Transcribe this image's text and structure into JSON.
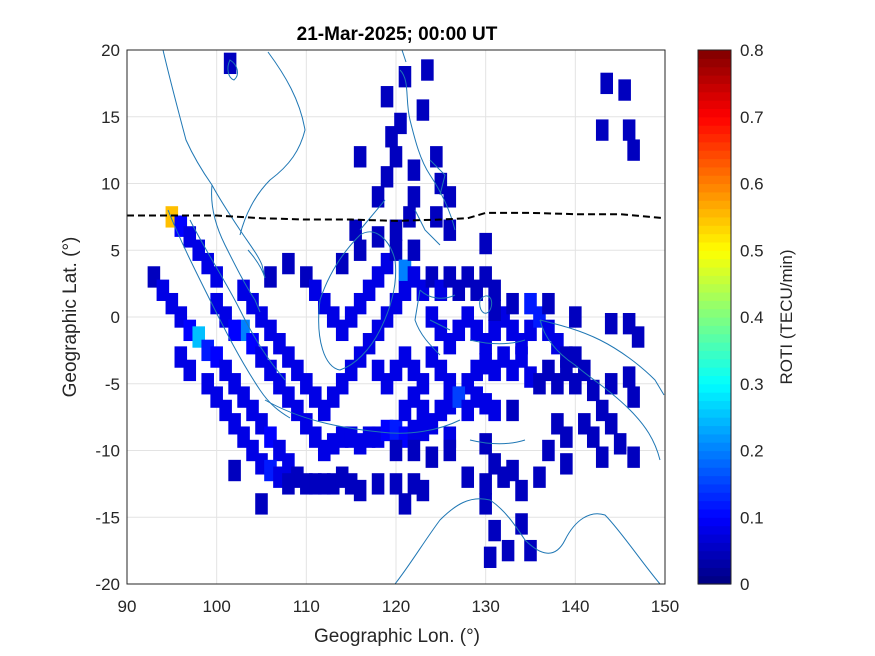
{
  "chart_data": {
    "type": "heatmap",
    "title": "21-Mar-2025; 00:00 UT",
    "xlabel": "Geographic Lon. (°)",
    "ylabel": "Geographic Lat. (°)",
    "xlim": [
      90,
      150
    ],
    "ylim": [
      -20,
      20
    ],
    "xticks": [
      "90",
      "100",
      "110",
      "120",
      "130",
      "140",
      "150"
    ],
    "yticks": [
      "20",
      "15",
      "10",
      "5",
      "0",
      "-5",
      "-10",
      "-15",
      "-20"
    ],
    "grid": true,
    "colorbar": {
      "label": "ROTI (TECU/min)",
      "range": [
        0,
        0.8
      ],
      "ticks": [
        "0.8",
        "0.7",
        "0.6",
        "0.5",
        "0.4",
        "0.3",
        "0.2",
        "0.1",
        "0"
      ],
      "colormap": "jet"
    },
    "overlays": [
      {
        "kind": "coastline",
        "color": "#1f77b4"
      },
      {
        "kind": "magnetic-equator",
        "style": "dashed",
        "color": "#000000",
        "points": [
          [
            90,
            7.6
          ],
          [
            100,
            7.6
          ],
          [
            105,
            7.4
          ],
          [
            110,
            7.3
          ],
          [
            115,
            7.3
          ],
          [
            120,
            7.2
          ],
          [
            125,
            7.3
          ],
          [
            128,
            7.4
          ],
          [
            130,
            7.8
          ],
          [
            135,
            7.8
          ],
          [
            140,
            7.7
          ],
          [
            145,
            7.7
          ],
          [
            150,
            7.4
          ]
        ]
      }
    ],
    "cells": [
      [
        101.5,
        19.0,
        0.05
      ],
      [
        123.5,
        18.5,
        0.05
      ],
      [
        121.0,
        18.0,
        0.05
      ],
      [
        119.0,
        16.5,
        0.05
      ],
      [
        143.5,
        17.5,
        0.05
      ],
      [
        145.5,
        17.0,
        0.05
      ],
      [
        120.5,
        14.5,
        0.05
      ],
      [
        123.0,
        15.5,
        0.05
      ],
      [
        119.5,
        13.5,
        0.05
      ],
      [
        120.0,
        12.0,
        0.05
      ],
      [
        143.0,
        14.0,
        0.05
      ],
      [
        146.0,
        14.0,
        0.05
      ],
      [
        146.5,
        12.5,
        0.05
      ],
      [
        116.0,
        12.0,
        0.05
      ],
      [
        124.5,
        12.0,
        0.05
      ],
      [
        122.0,
        11.0,
        0.05
      ],
      [
        119.0,
        10.5,
        0.05
      ],
      [
        125.0,
        10.0,
        0.05
      ],
      [
        118.0,
        9.0,
        0.05
      ],
      [
        122.0,
        9.0,
        0.05
      ],
      [
        126.0,
        9.0,
        0.05
      ],
      [
        121.5,
        7.5,
        0.05
      ],
      [
        124.5,
        7.5,
        0.05
      ],
      [
        126.0,
        6.5,
        0.05
      ],
      [
        115.5,
        6.5,
        0.05
      ],
      [
        130.0,
        5.5,
        0.05
      ],
      [
        95.0,
        7.5,
        0.55
      ],
      [
        96.0,
        6.8,
        0.1
      ],
      [
        97.0,
        6.0,
        0.08
      ],
      [
        98.0,
        5.0,
        0.08
      ],
      [
        99.0,
        4.0,
        0.08
      ],
      [
        100.0,
        3.0,
        0.08
      ],
      [
        93.0,
        3.0,
        0.05
      ],
      [
        94.0,
        2.0,
        0.08
      ],
      [
        95.0,
        1.0,
        0.08
      ],
      [
        96.0,
        0.0,
        0.08
      ],
      [
        97.0,
        -1.0,
        0.1
      ],
      [
        98.0,
        -1.5,
        0.25
      ],
      [
        99.0,
        -2.5,
        0.12
      ],
      [
        100.0,
        -3.0,
        0.1
      ],
      [
        101.0,
        -4.0,
        0.08
      ],
      [
        102.0,
        -5.0,
        0.08
      ],
      [
        103.0,
        -6.0,
        0.08
      ],
      [
        104.0,
        -7.0,
        0.08
      ],
      [
        105.0,
        -8.0,
        0.08
      ],
      [
        106.0,
        -9.0,
        0.1
      ],
      [
        107.0,
        -10.0,
        0.08
      ],
      [
        108.0,
        -11.0,
        0.08
      ],
      [
        109.0,
        -12.0,
        0.05
      ],
      [
        110.0,
        -12.5,
        0.05
      ],
      [
        111.0,
        -12.5,
        0.05
      ],
      [
        112.0,
        -12.5,
        0.05
      ],
      [
        103.0,
        -1.0,
        0.2
      ],
      [
        104.0,
        -2.0,
        0.1
      ],
      [
        105.0,
        -3.0,
        0.08
      ],
      [
        106.0,
        -4.0,
        0.08
      ],
      [
        107.0,
        -5.0,
        0.08
      ],
      [
        108.0,
        -6.0,
        0.08
      ],
      [
        109.0,
        -7.0,
        0.08
      ],
      [
        110.0,
        -8.0,
        0.08
      ],
      [
        111.0,
        -9.0,
        0.08
      ],
      [
        112.0,
        -10.0,
        0.08
      ],
      [
        113.0,
        -9.5,
        0.08
      ],
      [
        114.0,
        -9.0,
        0.08
      ],
      [
        115.0,
        -9.0,
        0.08
      ],
      [
        116.0,
        -9.5,
        0.08
      ],
      [
        117.0,
        -9.0,
        0.08
      ],
      [
        118.0,
        -9.0,
        0.08
      ],
      [
        119.0,
        -8.5,
        0.1
      ],
      [
        120.0,
        -8.5,
        0.12
      ],
      [
        121.0,
        -9.0,
        0.1
      ],
      [
        122.0,
        -8.5,
        0.08
      ],
      [
        123.0,
        -8.5,
        0.08
      ],
      [
        124.0,
        -8.0,
        0.08
      ],
      [
        100.0,
        1.0,
        0.08
      ],
      [
        101.0,
        0.0,
        0.08
      ],
      [
        102.0,
        -1.0,
        0.1
      ],
      [
        103.0,
        2.0,
        0.08
      ],
      [
        104.0,
        1.0,
        0.08
      ],
      [
        105.0,
        0.0,
        0.08
      ],
      [
        106.0,
        -1.0,
        0.08
      ],
      [
        107.0,
        -2.0,
        0.08
      ],
      [
        108.0,
        -3.0,
        0.08
      ],
      [
        109.0,
        -4.0,
        0.08
      ],
      [
        110.0,
        -5.0,
        0.08
      ],
      [
        111.0,
        -6.0,
        0.08
      ],
      [
        112.0,
        -7.0,
        0.08
      ],
      [
        113.0,
        -6.0,
        0.08
      ],
      [
        114.0,
        -5.0,
        0.08
      ],
      [
        115.0,
        -4.0,
        0.08
      ],
      [
        116.0,
        -3.0,
        0.08
      ],
      [
        117.0,
        -2.0,
        0.08
      ],
      [
        118.0,
        -1.0,
        0.08
      ],
      [
        119.0,
        0.0,
        0.08
      ],
      [
        120.0,
        1.0,
        0.08
      ],
      [
        121.0,
        2.0,
        0.08
      ],
      [
        110.0,
        3.0,
        0.05
      ],
      [
        111.0,
        2.0,
        0.08
      ],
      [
        112.0,
        1.0,
        0.08
      ],
      [
        113.0,
        0.0,
        0.08
      ],
      [
        114.0,
        -1.0,
        0.08
      ],
      [
        115.0,
        0.0,
        0.08
      ],
      [
        116.0,
        1.0,
        0.08
      ],
      [
        117.0,
        2.0,
        0.08
      ],
      [
        118.0,
        3.0,
        0.08
      ],
      [
        119.0,
        4.0,
        0.08
      ],
      [
        120.0,
        5.0,
        0.05
      ],
      [
        121.0,
        3.5,
        0.2
      ],
      [
        122.0,
        3.0,
        0.08
      ],
      [
        123.0,
        2.0,
        0.08
      ],
      [
        108.0,
        4.0,
        0.05
      ],
      [
        114.0,
        4.0,
        0.05
      ],
      [
        116.0,
        5.0,
        0.05
      ],
      [
        118.0,
        6.0,
        0.05
      ],
      [
        120.0,
        6.5,
        0.05
      ],
      [
        122.0,
        5.0,
        0.05
      ],
      [
        106.0,
        3.0,
        0.05
      ],
      [
        124.0,
        3.0,
        0.05
      ],
      [
        125.0,
        2.0,
        0.08
      ],
      [
        126.0,
        3.0,
        0.05
      ],
      [
        127.0,
        2.0,
        0.05
      ],
      [
        128.0,
        3.0,
        0.05
      ],
      [
        129.0,
        2.0,
        0.05
      ],
      [
        130.0,
        3.0,
        0.05
      ],
      [
        131.0,
        2.0,
        0.05
      ],
      [
        124.0,
        0.0,
        0.08
      ],
      [
        125.0,
        -1.0,
        0.08
      ],
      [
        126.0,
        -2.0,
        0.08
      ],
      [
        127.0,
        -1.0,
        0.08
      ],
      [
        128.0,
        0.0,
        0.08
      ],
      [
        129.0,
        -1.0,
        0.08
      ],
      [
        130.0,
        -2.0,
        0.08
      ],
      [
        131.0,
        -1.0,
        0.08
      ],
      [
        132.0,
        0.0,
        0.08
      ],
      [
        133.0,
        -1.0,
        0.08
      ],
      [
        134.0,
        -2.0,
        0.08
      ],
      [
        135.0,
        -1.0,
        0.08
      ],
      [
        136.0,
        0.0,
        0.12
      ],
      [
        137.0,
        -1.0,
        0.08
      ],
      [
        138.0,
        -2.0,
        0.08
      ],
      [
        139.0,
        -3.0,
        0.05
      ],
      [
        140.0,
        -3.0,
        0.05
      ],
      [
        141.0,
        -4.0,
        0.05
      ],
      [
        137.0,
        1.0,
        0.05
      ],
      [
        135.0,
        1.0,
        0.12
      ],
      [
        133.0,
        1.0,
        0.05
      ],
      [
        131.0,
        0.5,
        0.05
      ],
      [
        140.0,
        0.0,
        0.05
      ],
      [
        144.0,
        -0.5,
        0.05
      ],
      [
        146.0,
        -0.5,
        0.05
      ],
      [
        147.0,
        -1.5,
        0.05
      ],
      [
        124.0,
        -3.0,
        0.08
      ],
      [
        125.0,
        -4.0,
        0.08
      ],
      [
        126.0,
        -5.0,
        0.08
      ],
      [
        127.0,
        -6.0,
        0.08
      ],
      [
        128.0,
        -5.0,
        0.08
      ],
      [
        129.0,
        -4.0,
        0.08
      ],
      [
        130.0,
        -3.5,
        0.08
      ],
      [
        131.0,
        -4.0,
        0.08
      ],
      [
        132.0,
        -3.0,
        0.08
      ],
      [
        133.0,
        -4.0,
        0.08
      ],
      [
        134.0,
        -3.0,
        0.08
      ],
      [
        135.0,
        -4.5,
        0.08
      ],
      [
        136.0,
        -5.0,
        0.05
      ],
      [
        137.0,
        -4.0,
        0.05
      ],
      [
        118.0,
        -4.0,
        0.08
      ],
      [
        119.0,
        -5.0,
        0.08
      ],
      [
        120.0,
        -4.0,
        0.08
      ],
      [
        121.0,
        -3.0,
        0.08
      ],
      [
        122.0,
        -4.0,
        0.08
      ],
      [
        123.0,
        -5.0,
        0.08
      ],
      [
        122.0,
        -6.0,
        0.08
      ],
      [
        121.0,
        -7.0,
        0.08
      ],
      [
        123.0,
        -7.0,
        0.08
      ],
      [
        125.0,
        -7.0,
        0.08
      ],
      [
        126.0,
        -6.5,
        0.08
      ],
      [
        127.0,
        -6.0,
        0.15
      ],
      [
        128.0,
        -7.0,
        0.08
      ],
      [
        129.0,
        -6.0,
        0.08
      ],
      [
        130.0,
        -6.5,
        0.08
      ],
      [
        131.0,
        -7.0,
        0.08
      ],
      [
        133.0,
        -7.0,
        0.05
      ],
      [
        126.0,
        -9.0,
        0.08
      ],
      [
        130.0,
        -9.5,
        0.05
      ],
      [
        138.0,
        -5.0,
        0.05
      ],
      [
        139.0,
        -4.0,
        0.05
      ],
      [
        140.0,
        -5.0,
        0.05
      ],
      [
        142.0,
        -5.5,
        0.05
      ],
      [
        144.0,
        -5.0,
        0.05
      ],
      [
        146.0,
        -4.5,
        0.05
      ],
      [
        146.5,
        -6.0,
        0.05
      ],
      [
        143.0,
        -7.0,
        0.05
      ],
      [
        138.0,
        -8.0,
        0.05
      ],
      [
        139.0,
        -9.0,
        0.05
      ],
      [
        141.0,
        -8.0,
        0.05
      ],
      [
        142.0,
        -9.0,
        0.05
      ],
      [
        144.0,
        -8.0,
        0.05
      ],
      [
        145.0,
        -9.5,
        0.05
      ],
      [
        137.0,
        -10.0,
        0.05
      ],
      [
        139.0,
        -11.0,
        0.05
      ],
      [
        143.0,
        -10.5,
        0.05
      ],
      [
        146.5,
        -10.5,
        0.05
      ],
      [
        136.0,
        -12.0,
        0.05
      ],
      [
        131.0,
        -11.0,
        0.05
      ],
      [
        133.0,
        -11.5,
        0.05
      ],
      [
        128.0,
        -12.0,
        0.05
      ],
      [
        130.0,
        -12.5,
        0.05
      ],
      [
        132.0,
        -12.0,
        0.05
      ],
      [
        134.0,
        -13.0,
        0.05
      ],
      [
        126.0,
        -10.0,
        0.05
      ],
      [
        124.0,
        -10.5,
        0.05
      ],
      [
        122.0,
        -10.0,
        0.05
      ],
      [
        120.0,
        -10.0,
        0.05
      ],
      [
        118.0,
        -12.5,
        0.05
      ],
      [
        120.0,
        -12.5,
        0.05
      ],
      [
        122.0,
        -12.5,
        0.05
      ],
      [
        123.0,
        -13.0,
        0.05
      ],
      [
        121.0,
        -14.0,
        0.05
      ],
      [
        130.0,
        -14.0,
        0.05
      ],
      [
        131.0,
        -16.0,
        0.05
      ],
      [
        134.0,
        -15.5,
        0.05
      ],
      [
        130.5,
        -18.0,
        0.05
      ],
      [
        132.5,
        -17.5,
        0.05
      ],
      [
        135.0,
        -17.5,
        0.05
      ],
      [
        102.0,
        -11.5,
        0.05
      ],
      [
        105.0,
        -14.0,
        0.05
      ],
      [
        96.0,
        -3.0,
        0.08
      ],
      [
        97.0,
        -4.0,
        0.08
      ],
      [
        99.0,
        -5.0,
        0.08
      ],
      [
        100.0,
        -6.0,
        0.08
      ],
      [
        101.0,
        -7.0,
        0.08
      ],
      [
        102.0,
        -8.0,
        0.08
      ],
      [
        103.0,
        -9.0,
        0.08
      ],
      [
        104.0,
        -10.0,
        0.08
      ],
      [
        105.0,
        -11.0,
        0.08
      ],
      [
        106.0,
        -11.5,
        0.12
      ],
      [
        107.0,
        -12.0,
        0.08
      ],
      [
        108.0,
        -12.5,
        0.05
      ],
      [
        113.0,
        -12.5,
        0.05
      ],
      [
        114.0,
        -12.0,
        0.05
      ],
      [
        115.0,
        -12.5,
        0.05
      ],
      [
        116.0,
        -13.0,
        0.05
      ]
    ]
  }
}
